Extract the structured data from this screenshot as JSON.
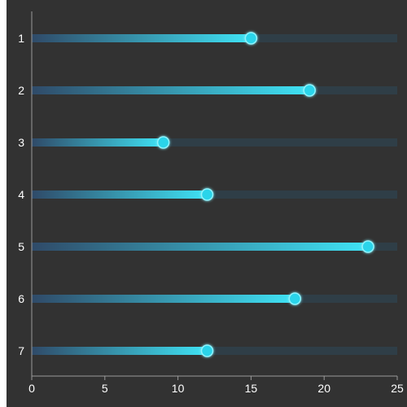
{
  "chart_data": {
    "type": "bar",
    "orientation": "horizontal",
    "style": "lollipop-progress",
    "categories": [
      "1",
      "2",
      "3",
      "4",
      "5",
      "6",
      "7"
    ],
    "values": [
      15,
      19,
      9,
      12,
      23,
      18,
      12
    ],
    "xlim": [
      0,
      25
    ],
    "xticks": [
      "0",
      "5",
      "10",
      "15",
      "20",
      "25"
    ],
    "grid": false,
    "legend": "none",
    "title": "",
    "xlabel": "",
    "ylabel": "",
    "colors": {
      "page_background": "#ffffff",
      "plot_background": "#323232",
      "track": "#2f3e47",
      "bar_start": "#2f4a68",
      "bar_end": "#3fe3f5",
      "dot": "#29d4ea",
      "axis": "#9a9a9a",
      "text": "#ffffff"
    }
  }
}
